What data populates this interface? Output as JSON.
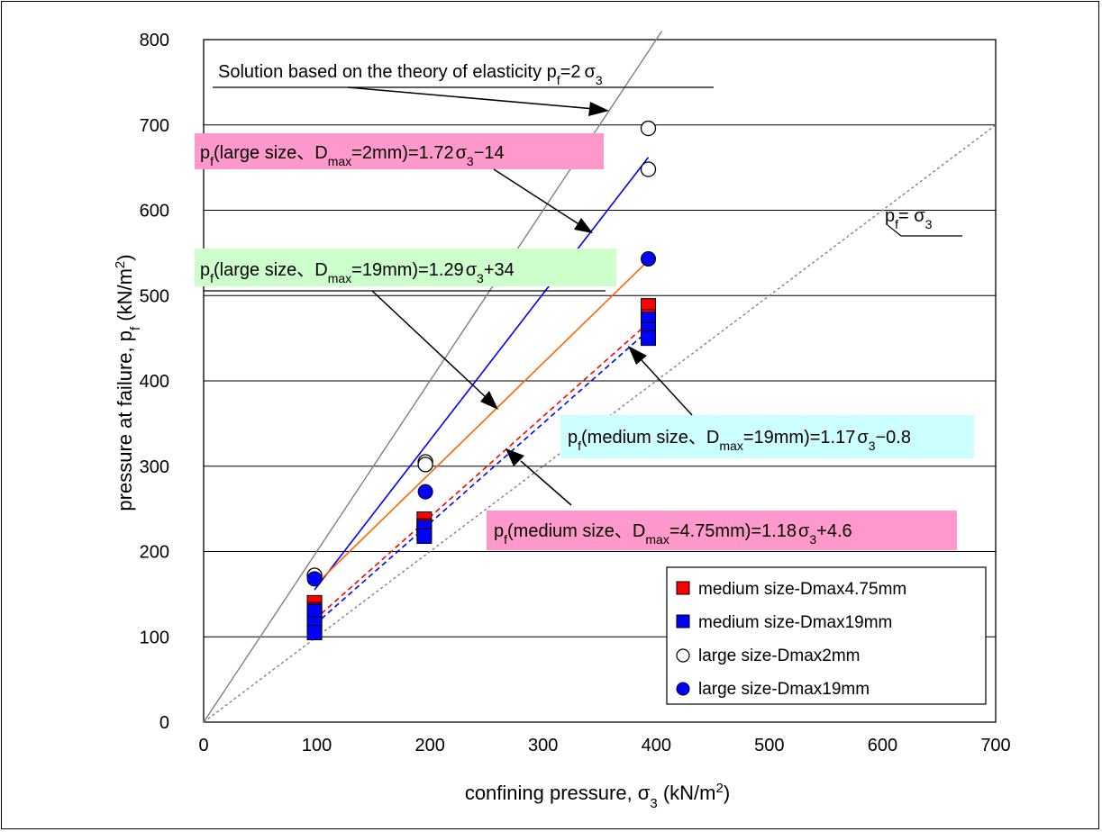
{
  "chart_data": {
    "type": "scatter",
    "xlim": [
      0,
      700
    ],
    "ylim": [
      0,
      800
    ],
    "x_ticks": [
      "0",
      "100",
      "200",
      "300",
      "400",
      "500",
      "600",
      "700"
    ],
    "y_ticks": [
      "0",
      "100",
      "200",
      "300",
      "400",
      "500",
      "600",
      "700",
      "800"
    ],
    "grid": "horizontal",
    "legend_position": "bottom-right",
    "xlabel": {
      "main": "confining pressure,   σ",
      "sub": "3",
      "unit": "  (kN/m",
      "sup": "2",
      "close": ")"
    },
    "ylabel": {
      "main": "pressure at failure,  p",
      "sub": "f",
      "unit": "  (kN/m",
      "sup": "2",
      "close": ")"
    },
    "series": [
      {
        "name": "medium size-Dmax4.75mm",
        "marker": "square",
        "color": "#ff0000",
        "points": [
          [
            98,
            140
          ],
          [
            98,
            132
          ],
          [
            98,
            125
          ],
          [
            98,
            118
          ],
          [
            195,
            238
          ],
          [
            195,
            230
          ],
          [
            195,
            222
          ],
          [
            393,
            488
          ],
          [
            393,
            475
          ],
          [
            393,
            465
          ]
        ]
      },
      {
        "name": "medium size-Dmax19mm",
        "marker": "square",
        "color": "#0000ff",
        "points": [
          [
            98,
            130
          ],
          [
            98,
            115
          ],
          [
            98,
            105
          ],
          [
            195,
            228
          ],
          [
            195,
            218
          ],
          [
            393,
            472
          ],
          [
            393,
            460
          ],
          [
            393,
            450
          ]
        ]
      },
      {
        "name": "large size-Dmax2mm",
        "marker": "circle-open",
        "color": "#000000",
        "points": [
          [
            98,
            172
          ],
          [
            196,
            305
          ],
          [
            196,
            302
          ],
          [
            393,
            696
          ],
          [
            393,
            648
          ]
        ]
      },
      {
        "name": "large size-Dmax19mm",
        "marker": "circle-filled",
        "color": "#0000ff",
        "points": [
          [
            98,
            168
          ],
          [
            196,
            270
          ],
          [
            393,
            543
          ]
        ]
      }
    ],
    "lines": [
      {
        "label": "theory of elasticity",
        "from": [
          0,
          0
        ],
        "to": [
          405,
          810
        ],
        "color": "#808080",
        "dash": "none"
      },
      {
        "label": "pf = sigma3",
        "from": [
          0,
          0
        ],
        "to": [
          700,
          700
        ],
        "color": "#808080",
        "dash": "dotted"
      },
      {
        "label": "large 2mm fit",
        "from": [
          98,
          155
        ],
        "to": [
          393,
          662
        ],
        "color": "#0000ff",
        "dash": "none"
      },
      {
        "label": "large 19mm fit",
        "from": [
          98,
          160
        ],
        "to": [
          393,
          541
        ],
        "color": "#ff6600",
        "dash": "none"
      },
      {
        "label": "medium 4.75mm fit",
        "from": [
          98,
          120
        ],
        "to": [
          393,
          468
        ],
        "color": "#ff0000",
        "dash": "dashed"
      },
      {
        "label": "medium 19mm fit",
        "from": [
          98,
          114
        ],
        "to": [
          393,
          459
        ],
        "color": "#0000ff",
        "dash": "dashed"
      }
    ],
    "annotations": {
      "elasticity": {
        "text": "Solution based on the theory of elasticity  p",
        "sub": "f",
        "mid": "=2",
        "sym": "σ",
        "sub2": "3"
      },
      "large2": {
        "pre": "p",
        "sub": "f",
        "mid": "(large size、D",
        "sub2": "max",
        "post": "=2mm)=1.72",
        "sym": "σ",
        "sub3": "3",
        "tail": "−14",
        "bg": "#ff99cc"
      },
      "large19": {
        "pre": "p",
        "sub": "f",
        "mid": "(large size、D",
        "sub2": "max",
        "post": "=19mm)=1.29",
        "sym": "σ",
        "sub3": "3",
        "tail": "+34",
        "bg": "#ccffcc"
      },
      "medium19": {
        "pre": "p",
        "sub": "f",
        "mid": "(medium size、D",
        "sub2": "max",
        "post": "=19mm)=1.17",
        "sym": "σ",
        "sub3": "3",
        "tail": "−0.8",
        "bg": "#ccffff"
      },
      "medium475": {
        "pre": "p",
        "sub": "f",
        "mid": "(medium size、D",
        "sub2": "max",
        "post": "=4.75mm)=1.18",
        "sym": "σ",
        "sub3": "3",
        "tail": "+4.6",
        "bg": "#ff99cc"
      },
      "equal": {
        "pre": "p",
        "sub": "f",
        "mid": "= ",
        "sym": "σ",
        "sub2": "3"
      }
    }
  }
}
